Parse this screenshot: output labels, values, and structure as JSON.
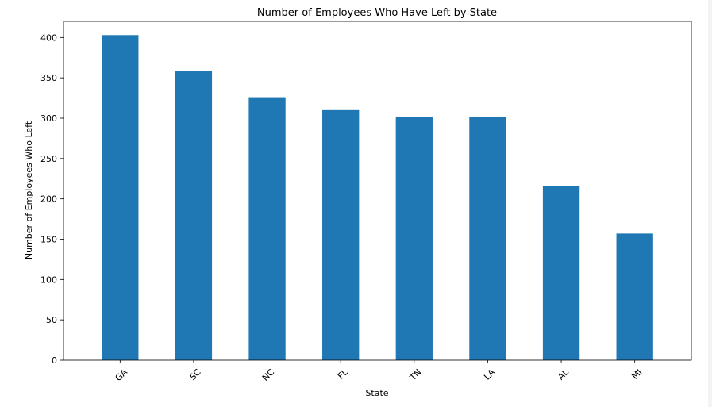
{
  "chart_data": {
    "type": "bar",
    "title": "Number of Employees Who Have Left by State",
    "xlabel": "State",
    "ylabel": "Number of Employees Who Left",
    "categories": [
      "GA",
      "SC",
      "NC",
      "FL",
      "TN",
      "LA",
      "AL",
      "MI"
    ],
    "values": [
      403,
      359,
      326,
      310,
      302,
      302,
      216,
      157
    ],
    "ylim": [
      0,
      420
    ],
    "yticks": [
      0,
      50,
      100,
      150,
      200,
      250,
      300,
      350,
      400
    ],
    "grid": false,
    "legend": "none",
    "bar_color": "#1f77b4"
  }
}
